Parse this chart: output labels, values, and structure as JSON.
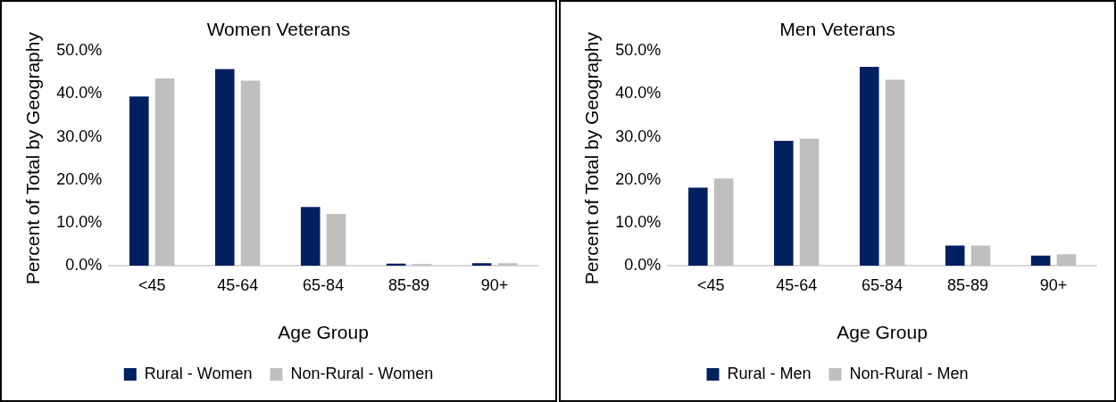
{
  "chart_data": [
    {
      "type": "bar",
      "title": "Women Veterans",
      "xlabel": "Age Group",
      "ylabel": "Percent of Total by Geography",
      "categories": [
        "<45",
        "45-64",
        "65-84",
        "85-89",
        "90+"
      ],
      "series": [
        {
          "name": "Rural - Women",
          "color": "#002060",
          "values": [
            39.4,
            45.8,
            13.7,
            0.5,
            0.6
          ]
        },
        {
          "name": "Non-Rural - Women",
          "color": "#bfbfbf",
          "values": [
            43.6,
            43.1,
            12.1,
            0.4,
            0.6
          ]
        }
      ],
      "ylim": [
        0,
        50
      ],
      "yticks": [
        {
          "value": 0,
          "label": "0.0%"
        },
        {
          "value": 10,
          "label": "10.0%"
        },
        {
          "value": 20,
          "label": "20.0%"
        },
        {
          "value": 30,
          "label": "30.0%"
        },
        {
          "value": 40,
          "label": "40.0%"
        },
        {
          "value": 50,
          "label": "50.0%"
        }
      ],
      "grid": false,
      "legend": "bottom"
    },
    {
      "type": "bar",
      "title": "Men Veterans",
      "xlabel": "Age Group",
      "ylabel": "Percent of Total by Geography",
      "categories": [
        "<45",
        "45-64",
        "65-84",
        "85-89",
        "90+"
      ],
      "series": [
        {
          "name": "Rural - Men",
          "color": "#002060",
          "values": [
            18.2,
            29.1,
            46.3,
            4.7,
            2.4
          ]
        },
        {
          "name": "Non-Rural - Men",
          "color": "#bfbfbf",
          "values": [
            20.3,
            29.6,
            43.3,
            4.7,
            2.7
          ]
        }
      ],
      "ylim": [
        0,
        50
      ],
      "yticks": [
        {
          "value": 0,
          "label": "0.0%"
        },
        {
          "value": 10,
          "label": "10.0%"
        },
        {
          "value": 20,
          "label": "20.0%"
        },
        {
          "value": 30,
          "label": "30.0%"
        },
        {
          "value": 40,
          "label": "40.0%"
        },
        {
          "value": 50,
          "label": "50.0%"
        }
      ],
      "grid": false,
      "legend": "bottom"
    }
  ]
}
